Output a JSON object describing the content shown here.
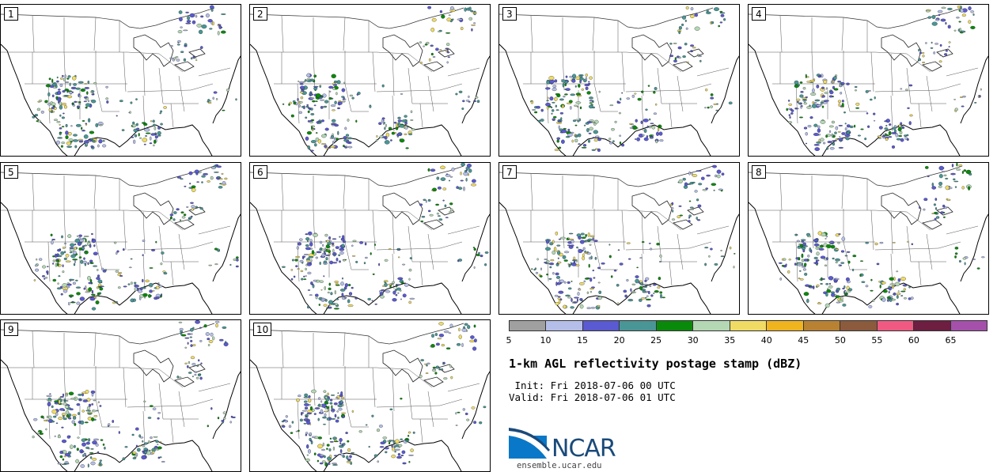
{
  "panels": [
    "1",
    "2",
    "3",
    "4",
    "5",
    "6",
    "7",
    "8",
    "9",
    "10"
  ],
  "colorbar": {
    "colors": [
      "#a0a0a0",
      "#b4bee8",
      "#5a5ad2",
      "#4a9696",
      "#0a8a0a",
      "#b4d7b4",
      "#f0dc64",
      "#f0b41e",
      "#b98232",
      "#8c5a3c",
      "#f05a82",
      "#6e1e41",
      "#a550aa"
    ],
    "ticks": [
      "5",
      "10",
      "15",
      "20",
      "25",
      "30",
      "35",
      "40",
      "45",
      "50",
      "55",
      "60",
      "65"
    ]
  },
  "title": "1-km AGL reflectivity postage stamp (dBZ)",
  "init": " Init: Fri 2018-07-06 00 UTC",
  "valid": "Valid: Fri 2018-07-06 01 UTC",
  "logo": "NCAR",
  "site": "ensemble.ucar.edu"
}
